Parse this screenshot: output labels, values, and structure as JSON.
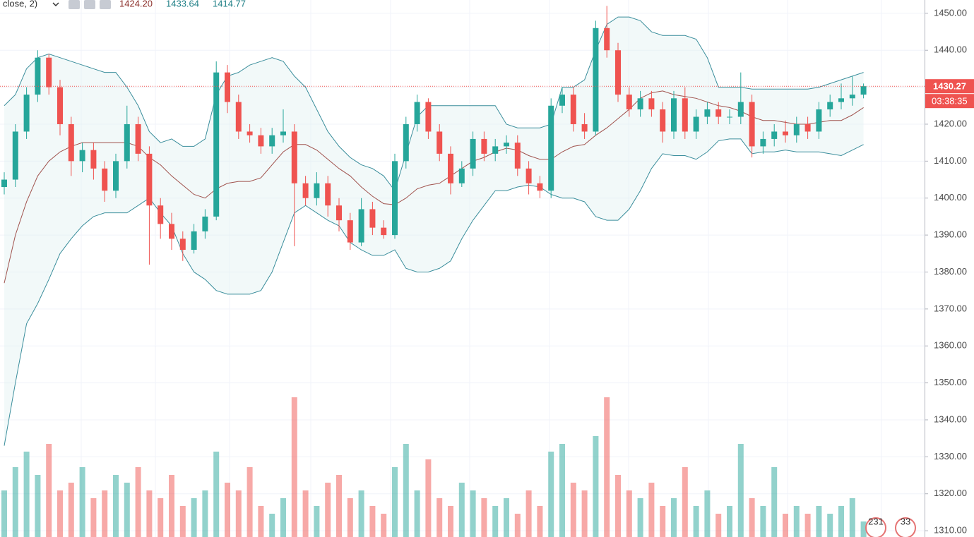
{
  "chart_data": {
    "type": "candlestick",
    "indicator_label": "close, 2)",
    "legend_values": [
      "1424.20",
      "1433.64",
      "1414.77"
    ],
    "last_price": {
      "value": 1430.27,
      "label": "1430.27"
    },
    "countdown": "03:38:35",
    "events": [
      "231",
      "33"
    ],
    "up_color": "#26a69a",
    "down_color": "#ef5350",
    "band_color": "#3b8e9c",
    "middle_color": "#a0524d",
    "grid": true,
    "ylim": [
      1308.3,
      1453.6
    ],
    "yticks": [
      {
        "value": 1310,
        "label": "1310.00"
      },
      {
        "value": 1320,
        "label": "1320.00"
      },
      {
        "value": 1330,
        "label": "1330.00"
      },
      {
        "value": 1340,
        "label": "1340.00"
      },
      {
        "value": 1350,
        "label": "1350.00"
      },
      {
        "value": 1360,
        "label": "1360.00"
      },
      {
        "value": 1370,
        "label": "1370.00"
      },
      {
        "value": 1380,
        "label": "1380.00"
      },
      {
        "value": 1390,
        "label": "1390.00"
      },
      {
        "value": 1400,
        "label": "1400.00"
      },
      {
        "value": 1410,
        "label": "1410.00"
      },
      {
        "value": 1420,
        "label": "1420.00"
      },
      {
        "value": 1430,
        "label": "1430.00"
      },
      {
        "value": 1440,
        "label": "1440.00"
      },
      {
        "value": 1450,
        "label": "1450.00"
      }
    ],
    "open": [
      1403,
      1405,
      1418,
      1428,
      1438,
      1430,
      1420,
      1410,
      1413,
      1408,
      1402,
      1410,
      1420,
      1412,
      1398,
      1393,
      1389,
      1386,
      1391,
      1395,
      1434,
      1426,
      1418,
      1417,
      1414,
      1417,
      1418,
      1404,
      1400,
      1404,
      1398,
      1394,
      1388,
      1397,
      1392,
      1390,
      1410,
      1420,
      1426,
      1418,
      1412,
      1404,
      1408,
      1416,
      1412,
      1414,
      1415,
      1408,
      1404,
      1402,
      1425,
      1428,
      1420,
      1418,
      1446,
      1440,
      1428,
      1424,
      1427,
      1424,
      1418,
      1427,
      1418,
      1422,
      1424,
      1422,
      1422,
      1426,
      1414,
      1416,
      1418,
      1417,
      1420,
      1418,
      1424,
      1426,
      1427,
      1428
    ],
    "high": [
      1407,
      1420,
      1430,
      1440,
      1439,
      1432,
      1422,
      1415,
      1415,
      1410,
      1412,
      1425,
      1422,
      1414,
      1400,
      1396,
      1391,
      1393,
      1397,
      1437,
      1436,
      1428,
      1420,
      1419,
      1419,
      1424,
      1420,
      1406,
      1407,
      1406,
      1400,
      1396,
      1400,
      1399,
      1394,
      1412,
      1422,
      1428,
      1427,
      1420,
      1414,
      1410,
      1418,
      1418,
      1416,
      1417,
      1417,
      1410,
      1406,
      1427,
      1430,
      1430,
      1423,
      1448,
      1452,
      1442,
      1430,
      1429,
      1429,
      1426,
      1429,
      1430,
      1424,
      1426,
      1426,
      1424,
      1434,
      1428,
      1418,
      1420,
      1421,
      1422,
      1422,
      1426,
      1428,
      1431,
      1433,
      1431
    ],
    "low": [
      1401,
      1403,
      1416,
      1426,
      1428,
      1417,
      1406,
      1407,
      1405,
      1399,
      1400,
      1408,
      1410,
      1382,
      1389,
      1386,
      1383,
      1385,
      1389,
      1394,
      1423,
      1416,
      1415,
      1412,
      1412,
      1415,
      1387,
      1398,
      1398,
      1395,
      1391,
      1386,
      1387,
      1390,
      1389,
      1389,
      1408,
      1418,
      1416,
      1410,
      1401,
      1403,
      1406,
      1410,
      1410,
      1412,
      1406,
      1401,
      1400,
      1400,
      1423,
      1418,
      1416,
      1417,
      1438,
      1426,
      1422,
      1422,
      1422,
      1415,
      1416,
      1416,
      1416,
      1420,
      1420,
      1420,
      1420,
      1411,
      1412,
      1414,
      1415,
      1415,
      1416,
      1416,
      1422,
      1424,
      1425,
      1427
    ],
    "close": [
      1405,
      1418,
      1428,
      1438,
      1430,
      1420,
      1410,
      1413,
      1408,
      1402,
      1410,
      1420,
      1412,
      1398,
      1393,
      1389,
      1386,
      1391,
      1395,
      1434,
      1426,
      1418,
      1417,
      1414,
      1417,
      1418,
      1404,
      1400,
      1404,
      1398,
      1394,
      1388,
      1397,
      1392,
      1390,
      1410,
      1420,
      1426,
      1418,
      1412,
      1404,
      1408,
      1416,
      1412,
      1414,
      1415,
      1408,
      1404,
      1402,
      1425,
      1428,
      1420,
      1418,
      1446,
      1440,
      1428,
      1424,
      1427,
      1424,
      1418,
      1427,
      1418,
      1422,
      1424,
      1422,
      1422,
      1426,
      1414,
      1416,
      1418,
      1417,
      1420,
      1418,
      1424,
      1426,
      1427,
      1428,
      1430.27
    ],
    "bands": {
      "upper": [
        1425,
        1428,
        1435,
        1438,
        1439,
        1438,
        1437,
        1436,
        1435,
        1434,
        1434,
        1430,
        1425,
        1418,
        1415,
        1416,
        1414,
        1414,
        1416,
        1428,
        1433,
        1434,
        1436,
        1437,
        1438,
        1437,
        1433,
        1430,
        1424,
        1418,
        1414,
        1411,
        1409,
        1408,
        1406,
        1402,
        1412,
        1422,
        1425,
        1425,
        1425,
        1425,
        1425,
        1425,
        1425,
        1420,
        1419,
        1419,
        1419,
        1420,
        1430,
        1430,
        1432,
        1440,
        1447,
        1449,
        1449,
        1448,
        1445,
        1444,
        1444,
        1444,
        1443,
        1438,
        1430,
        1430,
        1430,
        1429.5,
        1429.5,
        1429.5,
        1429.5,
        1429.5,
        1429.5,
        1430,
        1431,
        1432,
        1433,
        1434
      ],
      "middle": [
        1377,
        1390,
        1399,
        1406,
        1410,
        1412.5,
        1414,
        1415,
        1415,
        1415,
        1415,
        1415,
        1414,
        1411,
        1409,
        1406,
        1403.5,
        1401,
        1400,
        1402.5,
        1404,
        1404.5,
        1404.5,
        1405.5,
        1409,
        1412.5,
        1414.5,
        1414.5,
        1413,
        1410.5,
        1408,
        1406,
        1403,
        1400.5,
        1398.5,
        1398.2,
        1400,
        1402.5,
        1403.5,
        1404,
        1406,
        1408,
        1410,
        1411,
        1412.5,
        1413.5,
        1413,
        1411.5,
        1410.5,
        1410.5,
        1412.5,
        1414,
        1414.5,
        1417,
        1419,
        1421.5,
        1424,
        1427,
        1428.5,
        1429,
        1428,
        1427.5,
        1427,
        1426,
        1425,
        1424.5,
        1423.5,
        1422,
        1421,
        1421,
        1420.5,
        1420,
        1420,
        1420.5,
        1421,
        1421,
        1422.5,
        1424.5
      ],
      "lower": [
        1333,
        1350,
        1366,
        1371.5,
        1378,
        1385,
        1389,
        1392.5,
        1395,
        1396,
        1396,
        1396,
        1398,
        1400,
        1396,
        1392.5,
        1385,
        1380,
        1378,
        1375,
        1374,
        1374,
        1374,
        1375,
        1380,
        1388,
        1396,
        1398,
        1396,
        1394,
        1392.5,
        1388,
        1386,
        1384.5,
        1384.5,
        1386,
        1381,
        1380,
        1380,
        1381,
        1383,
        1389,
        1394,
        1398,
        1402,
        1402,
        1403,
        1403.5,
        1403,
        1401,
        1400,
        1400,
        1399,
        1395,
        1394,
        1394,
        1397,
        1402,
        1408,
        1412,
        1411.5,
        1411.5,
        1410.5,
        1412.5,
        1415.5,
        1416,
        1416,
        1412,
        1412.5,
        1412.5,
        1413,
        1412.5,
        1412.5,
        1412.5,
        1412,
        1411.5,
        1413,
        1414.5
      ]
    },
    "volume_lim": [
      0,
      100
    ],
    "volume": [
      30,
      45,
      55,
      40,
      60,
      30,
      35,
      45,
      25,
      30,
      40,
      35,
      45,
      30,
      25,
      40,
      20,
      25,
      30,
      55,
      35,
      30,
      45,
      20,
      15,
      25,
      90,
      30,
      20,
      35,
      40,
      25,
      30,
      20,
      15,
      45,
      60,
      30,
      50,
      25,
      20,
      35,
      30,
      25,
      20,
      25,
      15,
      30,
      20,
      55,
      60,
      35,
      30,
      65,
      90,
      40,
      30,
      25,
      35,
      20,
      25,
      45,
      20,
      30,
      15,
      20,
      60,
      25,
      20,
      45,
      15,
      20,
      15,
      20,
      15,
      20,
      25,
      10
    ]
  }
}
